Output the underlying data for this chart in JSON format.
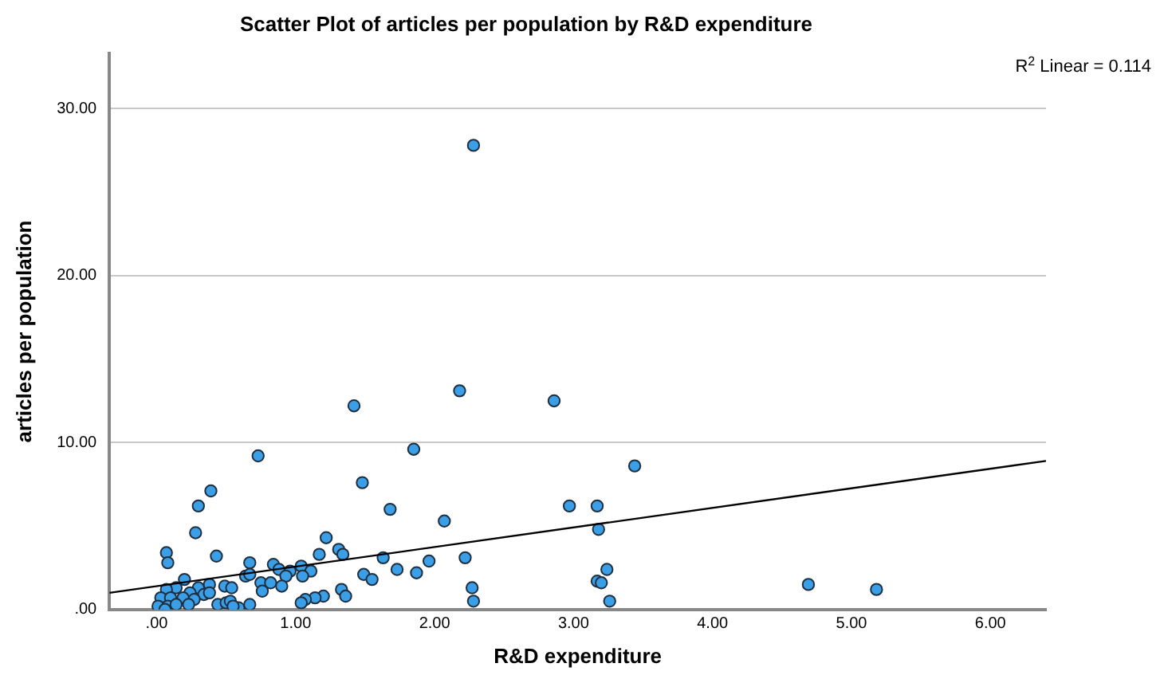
{
  "chart_data": {
    "type": "scatter",
    "title": "Scatter Plot of articles per population by R&D expenditure",
    "xlabel": "R&D expenditure",
    "ylabel": "articles per population",
    "annotations": [
      "R$^{2}$ Linear = 0.114"
    ],
    "series": [
      {
        "color": "#3a9fe6",
        "marker": "circle",
        "x": [
          2.28,
          2.18,
          1.42,
          2.86,
          1.85,
          1.48,
          3.44,
          1.68,
          2.97,
          3.17,
          2.07,
          3.18,
          1.22,
          1.31,
          1.34,
          1.17,
          1.04,
          1.11,
          1.05,
          1.63,
          2.22,
          1.96,
          1.73,
          1.87,
          1.49,
          1.55,
          3.24,
          3.17,
          3.2,
          1.33,
          1.36,
          2.27,
          2.28,
          3.26,
          1.2,
          1.14,
          1.07,
          1.04,
          0.73,
          0.39,
          0.3,
          4.69,
          5.18,
          0.28,
          0.07,
          0.08,
          0.43,
          0.67,
          0.84,
          0.88,
          0.96,
          0.93,
          0.64,
          0.67,
          0.2,
          0.38,
          0.3,
          0.14,
          0.07,
          0.75,
          0.82,
          0.76,
          0.9,
          0.49,
          0.54,
          0.24,
          0.34,
          0.38,
          0.03,
          0.1,
          0.19,
          0.27,
          0.01,
          0.08,
          0.14,
          0.23,
          0.44,
          0.5,
          0.53,
          0.59,
          0.67,
          0.55,
          0.06
        ],
        "values": [
          27.8,
          13.1,
          12.2,
          12.5,
          9.6,
          7.6,
          8.6,
          6.0,
          6.2,
          6.2,
          5.3,
          4.8,
          4.3,
          3.6,
          3.3,
          3.3,
          2.6,
          2.3,
          2.0,
          3.1,
          3.1,
          2.9,
          2.4,
          2.2,
          2.1,
          1.8,
          2.4,
          1.7,
          1.6,
          1.2,
          0.8,
          1.3,
          0.5,
          0.5,
          0.8,
          0.7,
          0.6,
          0.4,
          9.2,
          7.1,
          6.2,
          1.5,
          1.2,
          4.6,
          3.4,
          2.8,
          3.2,
          2.8,
          2.7,
          2.4,
          2.3,
          2.0,
          2.0,
          2.1,
          1.8,
          1.5,
          1.3,
          1.3,
          1.2,
          1.6,
          1.6,
          1.1,
          1.4,
          1.4,
          1.3,
          1.0,
          0.9,
          1.0,
          0.7,
          0.7,
          0.7,
          0.6,
          0.2,
          0.2,
          0.3,
          0.3,
          0.3,
          0.4,
          0.5,
          0.1,
          0.3,
          0.2,
          0.0
        ]
      },
      {
        "type": "line",
        "color": "#000000",
        "x": [
          -0.34,
          6.4
        ],
        "values": [
          1.0,
          8.9
        ]
      }
    ],
    "xlim": [
      -0.34,
      6.4
    ],
    "ylim": [
      0,
      33.3
    ],
    "xticks": [
      {
        "value": 0,
        "label": ".00"
      },
      {
        "value": 1,
        "label": "1.00"
      },
      {
        "value": 2,
        "label": "2.00"
      },
      {
        "value": 3,
        "label": "3.00"
      },
      {
        "value": 4,
        "label": "4.00"
      },
      {
        "value": 5,
        "label": "5.00"
      },
      {
        "value": 6,
        "label": "6.00"
      }
    ],
    "yticks": [
      {
        "value": 0,
        "label": ".00"
      },
      {
        "value": 10,
        "label": "10.00"
      },
      {
        "value": 20,
        "label": "20.00"
      },
      {
        "value": 30,
        "label": "30.00"
      }
    ],
    "grid": "y",
    "legend": false
  }
}
